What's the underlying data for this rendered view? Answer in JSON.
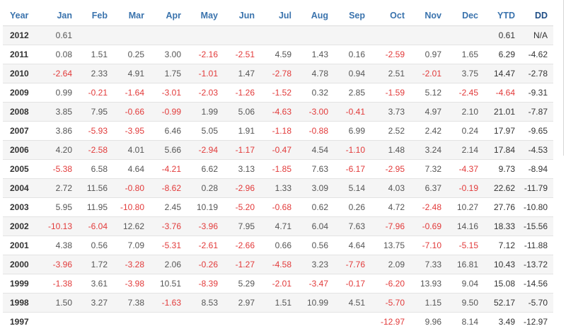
{
  "table": {
    "headers": [
      "Year",
      "Jan",
      "Feb",
      "Mar",
      "Apr",
      "May",
      "Jun",
      "Jul",
      "Aug",
      "Sep",
      "Oct",
      "Nov",
      "Dec",
      "YTD",
      "DD"
    ],
    "rows": [
      {
        "year": "2012",
        "cells": [
          "0.61",
          "",
          "",
          "",
          "",
          "",
          "",
          "",
          "",
          "",
          "",
          "",
          "0.61",
          "N/A"
        ]
      },
      {
        "year": "2011",
        "cells": [
          "0.08",
          "1.51",
          "0.25",
          "3.00",
          "-2.16",
          "-2.51",
          "4.59",
          "1.43",
          "0.16",
          "-2.59",
          "0.97",
          "1.65",
          "6.29",
          "-4.62"
        ]
      },
      {
        "year": "2010",
        "cells": [
          "-2.64",
          "2.33",
          "4.91",
          "1.75",
          "-1.01",
          "1.47",
          "-2.78",
          "4.78",
          "0.94",
          "2.51",
          "-2.01",
          "3.75",
          "14.47",
          "-2.78"
        ]
      },
      {
        "year": "2009",
        "cells": [
          "0.99",
          "-0.21",
          "-1.64",
          "-3.01",
          "-2.03",
          "-1.26",
          "-1.52",
          "0.32",
          "2.85",
          "-1.59",
          "5.12",
          "-2.45",
          "-4.64",
          "-9.31"
        ]
      },
      {
        "year": "2008",
        "cells": [
          "3.85",
          "7.95",
          "-0.66",
          "-0.99",
          "1.99",
          "5.06",
          "-4.63",
          "-3.00",
          "-0.41",
          "3.73",
          "4.97",
          "2.10",
          "21.01",
          "-7.87"
        ]
      },
      {
        "year": "2007",
        "cells": [
          "3.86",
          "-5.93",
          "-3.95",
          "6.46",
          "5.05",
          "1.91",
          "-1.18",
          "-0.88",
          "6.99",
          "2.52",
          "2.42",
          "0.24",
          "17.97",
          "-9.65"
        ]
      },
      {
        "year": "2006",
        "cells": [
          "4.20",
          "-2.58",
          "4.01",
          "5.66",
          "-2.94",
          "-1.17",
          "-0.47",
          "4.54",
          "-1.10",
          "1.48",
          "3.24",
          "2.14",
          "17.84",
          "-4.53"
        ]
      },
      {
        "year": "2005",
        "cells": [
          "-5.38",
          "6.58",
          "4.64",
          "-4.21",
          "6.62",
          "3.13",
          "-1.85",
          "7.63",
          "-6.17",
          "-2.95",
          "7.32",
          "-4.37",
          "9.73",
          "-8.94"
        ]
      },
      {
        "year": "2004",
        "cells": [
          "2.72",
          "11.56",
          "-0.80",
          "-8.62",
          "0.28",
          "-2.96",
          "1.33",
          "3.09",
          "5.14",
          "4.03",
          "6.37",
          "-0.19",
          "22.62",
          "-11.79"
        ]
      },
      {
        "year": "2003",
        "cells": [
          "5.95",
          "11.95",
          "-10.80",
          "2.45",
          "10.19",
          "-5.20",
          "-0.68",
          "0.62",
          "0.26",
          "4.72",
          "-2.48",
          "10.27",
          "27.76",
          "-10.80"
        ]
      },
      {
        "year": "2002",
        "cells": [
          "-10.13",
          "-6.04",
          "12.62",
          "-3.76",
          "-3.96",
          "7.95",
          "4.71",
          "6.04",
          "7.63",
          "-7.96",
          "-0.69",
          "14.16",
          "18.33",
          "-15.56"
        ]
      },
      {
        "year": "2001",
        "cells": [
          "4.38",
          "0.56",
          "7.09",
          "-5.31",
          "-2.61",
          "-2.66",
          "0.66",
          "0.56",
          "4.64",
          "13.75",
          "-7.10",
          "-5.15",
          "7.12",
          "-11.88"
        ]
      },
      {
        "year": "2000",
        "cells": [
          "-3.96",
          "1.72",
          "-3.28",
          "2.06",
          "-0.26",
          "-1.27",
          "-4.58",
          "3.23",
          "-7.76",
          "2.09",
          "7.33",
          "16.81",
          "10.43",
          "-13.72"
        ]
      },
      {
        "year": "1999",
        "cells": [
          "-1.38",
          "3.61",
          "-3.98",
          "10.51",
          "-8.39",
          "5.29",
          "-2.01",
          "-3.47",
          "-0.17",
          "-6.20",
          "13.93",
          "9.04",
          "15.08",
          "-14.56"
        ]
      },
      {
        "year": "1998",
        "cells": [
          "1.50",
          "3.27",
          "7.38",
          "-1.63",
          "8.53",
          "2.97",
          "1.51",
          "10.99",
          "4.51",
          "-5.70",
          "1.15",
          "9.50",
          "52.17",
          "-5.70"
        ]
      },
      {
        "year": "1997",
        "cells": [
          "",
          "",
          "",
          "",
          "",
          "",
          "",
          "",
          "",
          "-12.97",
          "9.96",
          "8.14",
          "3.49",
          "-12.97"
        ]
      }
    ]
  },
  "colors": {
    "header_text": "#3a73ad",
    "negative_text": "#e23a3a",
    "positive_text": "#555555",
    "stripe_background": "#f5f5f5"
  }
}
